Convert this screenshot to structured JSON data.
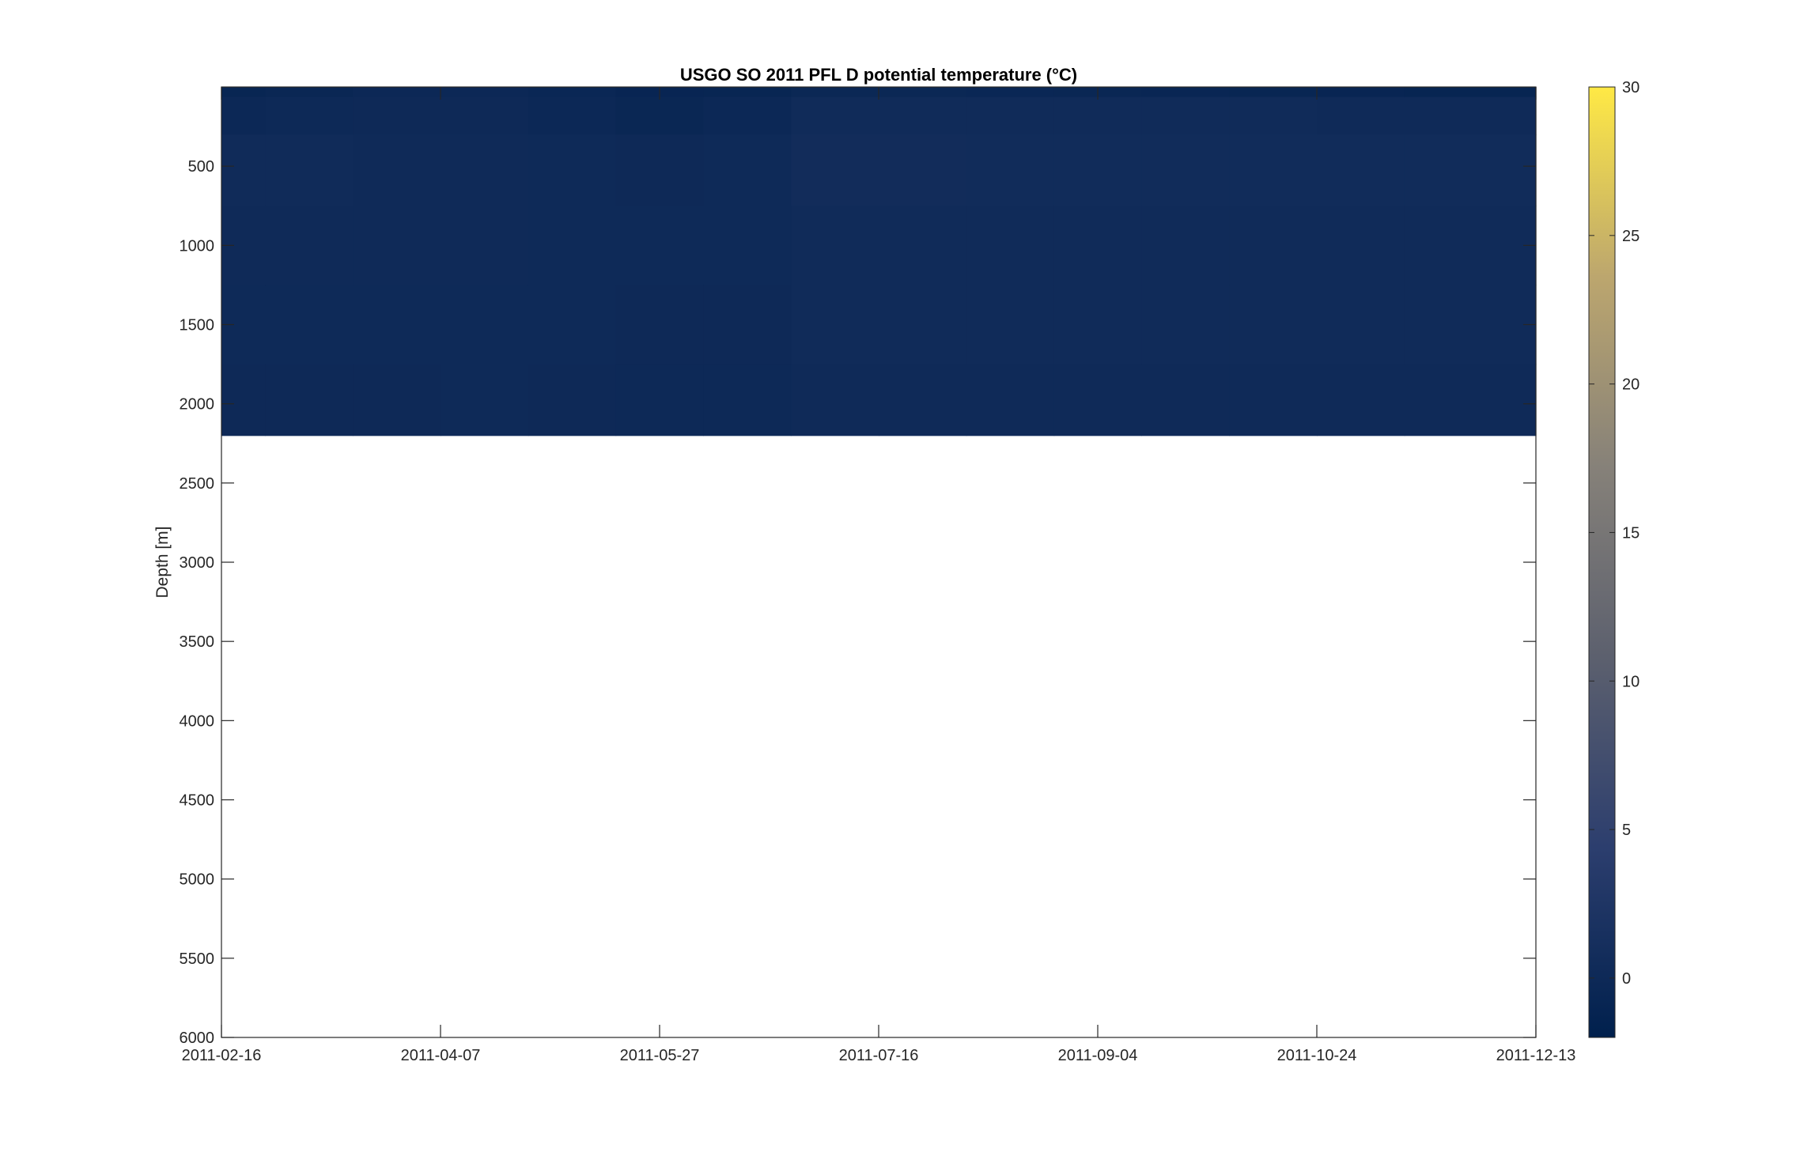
{
  "chart_data": {
    "type": "heatmap",
    "title": "USGO SO 2011 PFL D potential temperature (°C)",
    "xlabel": "",
    "ylabel": "Depth [m]",
    "x_tick_labels": [
      "2011-02-16",
      "2011-04-07",
      "2011-05-27",
      "2011-07-16",
      "2011-09-04",
      "2011-10-24",
      "2011-12-13"
    ],
    "x_range": [
      "2011-02-16",
      "2011-12-13"
    ],
    "y_ticks": [
      500,
      1000,
      1500,
      2000,
      2500,
      3000,
      3500,
      4000,
      4500,
      5000,
      5500,
      6000
    ],
    "y_range": [
      0,
      6000
    ],
    "y_reversed": true,
    "grid": false,
    "colormap": "cividis",
    "colorbar": {
      "ticks": [
        0,
        5,
        10,
        15,
        20,
        25,
        30
      ],
      "range": [
        -2,
        30
      ],
      "location": "right"
    },
    "data_depth_range": [
      0,
      2200
    ],
    "profiles": [
      {
        "date": "2011-02-16",
        "depth": [
          25,
          100,
          500,
          1000,
          1500,
          2000
        ],
        "temperature": [
          -0.8,
          -0.2,
          0.3,
          0.2,
          0.1,
          0.0
        ]
      },
      {
        "date": "2011-03-08",
        "depth": [
          25,
          100,
          500,
          1000,
          1500,
          2000
        ],
        "temperature": [
          -0.6,
          -0.1,
          0.3,
          0.2,
          0.1,
          0.0
        ]
      },
      {
        "date": "2011-03-28",
        "depth": [
          25,
          100,
          500,
          1000,
          1500,
          2000
        ],
        "temperature": [
          -0.3,
          0.0,
          0.2,
          0.2,
          0.1,
          0.0
        ]
      },
      {
        "date": "2011-04-17",
        "depth": [
          25,
          100,
          500,
          1000,
          1500,
          2000
        ],
        "temperature": [
          -0.2,
          0.0,
          0.2,
          0.15,
          0.1,
          0.05
        ]
      },
      {
        "date": "2011-05-07",
        "depth": [
          25,
          100,
          500,
          1000,
          1500,
          2000
        ],
        "temperature": [
          -0.5,
          -0.3,
          0.1,
          0.1,
          0.05,
          0.0
        ]
      },
      {
        "date": "2011-05-27",
        "depth": [
          25,
          100,
          500,
          1000,
          1500,
          2000
        ],
        "temperature": [
          -0.9,
          -0.6,
          0.0,
          0.05,
          0.0,
          -0.05
        ]
      },
      {
        "date": "2011-06-16",
        "depth": [
          25,
          100,
          500,
          1000,
          1500,
          2000
        ],
        "temperature": [
          -0.8,
          -0.3,
          0.1,
          0.05,
          0.0,
          -0.05
        ]
      },
      {
        "date": "2011-07-06",
        "depth": [
          25,
          100,
          500,
          1000,
          1500,
          2000
        ],
        "temperature": [
          -0.4,
          0.4,
          0.6,
          0.4,
          0.3,
          0.2
        ]
      },
      {
        "date": "2011-07-26",
        "depth": [
          25,
          100,
          500,
          1000,
          1500,
          2000
        ],
        "temperature": [
          -0.4,
          0.4,
          0.6,
          0.4,
          0.3,
          0.2
        ]
      },
      {
        "date": "2011-08-15",
        "depth": [
          25,
          100,
          500,
          1000,
          1500,
          2000
        ],
        "temperature": [
          -0.5,
          0.3,
          0.5,
          0.4,
          0.3,
          0.2
        ]
      },
      {
        "date": "2011-09-04",
        "depth": [
          25,
          100,
          500,
          1000,
          1500,
          2000
        ],
        "temperature": [
          -0.6,
          0.3,
          0.5,
          0.4,
          0.3,
          0.2
        ]
      },
      {
        "date": "2011-09-24",
        "depth": [
          25,
          100,
          500,
          1000,
          1500,
          2000
        ],
        "temperature": [
          -0.7,
          0.3,
          0.5,
          0.4,
          0.3,
          0.2
        ]
      },
      {
        "date": "2011-10-14",
        "depth": [
          25,
          100,
          500,
          1000,
          1500,
          2000
        ],
        "temperature": [
          -0.8,
          0.3,
          0.5,
          0.4,
          0.3,
          0.2
        ]
      },
      {
        "date": "2011-11-03",
        "depth": [
          25,
          100,
          500,
          1000,
          1500,
          2000
        ],
        "temperature": [
          -0.9,
          0.2,
          0.5,
          0.4,
          0.3,
          0.2
        ]
      },
      {
        "date": "2011-11-23",
        "depth": [
          25,
          100,
          500,
          1000,
          1500,
          2000
        ],
        "temperature": [
          -1.0,
          0.2,
          0.5,
          0.4,
          0.3,
          0.2
        ]
      }
    ]
  }
}
